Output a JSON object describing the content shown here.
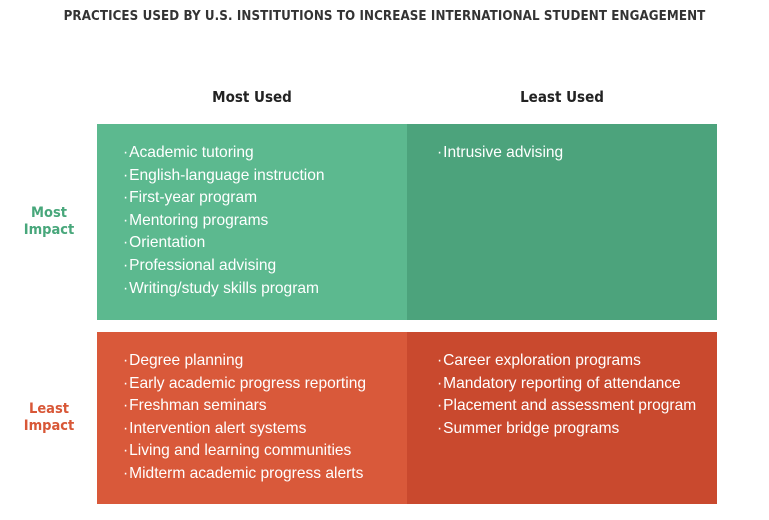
{
  "title": "PRACTICES USED BY U.S. INSTITUTIONS TO INCREASE INTERNATIONAL STUDENT ENGAGEMENT",
  "columns": {
    "most_used": "Most Used",
    "least_used": "Least Used"
  },
  "rows": {
    "most_impact": [
      "Most",
      "Impact"
    ],
    "least_impact": [
      "Least",
      "Impact"
    ]
  },
  "cells": {
    "most_used_most_impact": [
      "Academic tutoring",
      "English-language instruction",
      "First-year program",
      "Mentoring programs",
      "Orientation",
      "Professional advising",
      "Writing/study skills program"
    ],
    "least_used_most_impact": [
      "Intrusive advising"
    ],
    "most_used_least_impact": [
      "Degree planning",
      "Early academic progress reporting",
      "Freshman seminars",
      "Intervention alert systems",
      "Living and learning communities",
      "Midterm academic progress alerts"
    ],
    "least_used_least_impact": [
      "Career exploration programs",
      "Mandatory reporting of attendance",
      "Placement and assessment program",
      "Summer bridge programs"
    ]
  },
  "colors": {
    "most_used_most_impact": "#5cb98f",
    "least_used_most_impact": "#4ca37c",
    "most_used_least_impact": "#d9593a",
    "least_used_least_impact": "#c9492e",
    "most_impact_label": "#48a77b",
    "least_impact_label": "#d85737"
  }
}
